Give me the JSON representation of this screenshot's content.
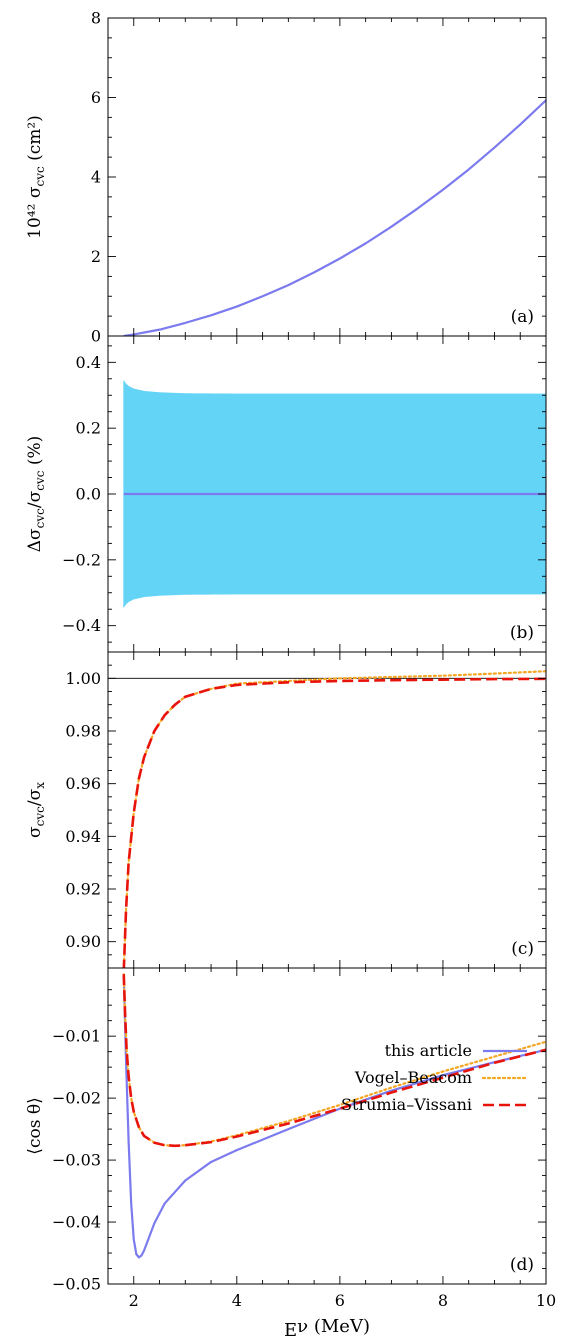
{
  "chart_data": [
    {
      "id": "a",
      "type": "line",
      "panel_label": "(a)",
      "ylabel": "10⁴² σ_cvc   (cm²)",
      "ylim": [
        0,
        8
      ],
      "yticks": [
        0,
        2,
        4,
        6,
        8
      ],
      "ytick_labels": [
        "0",
        "2",
        "4",
        "6",
        "8"
      ],
      "grid": false,
      "series": [
        {
          "color": "#7b7bef",
          "style": "solid",
          "x": [
            1.806,
            2.0,
            2.5,
            3.0,
            3.5,
            4.0,
            4.5,
            5.0,
            5.5,
            6.0,
            6.5,
            7.0,
            7.5,
            8.0,
            8.5,
            9.0,
            9.5,
            10.0
          ],
          "y": [
            0.0,
            0.04,
            0.16,
            0.33,
            0.52,
            0.74,
            1.0,
            1.28,
            1.6,
            1.95,
            2.33,
            2.75,
            3.2,
            3.68,
            4.19,
            4.74,
            5.32,
            5.93
          ]
        }
      ]
    },
    {
      "id": "b",
      "type": "line",
      "panel_label": "(b)",
      "ylabel": "Δσ_cvc/σ_cvc   (%)",
      "ylim": [
        -0.48,
        0.48
      ],
      "yticks": [
        -0.4,
        -0.2,
        0.0,
        0.2,
        0.4
      ],
      "ytick_labels": [
        "−0.4",
        "−0.2",
        "0.0",
        "0.2",
        "0.4"
      ],
      "grid": false,
      "band": {
        "color": "#5bd1f5",
        "x": [
          1.806,
          1.85,
          1.9,
          2.0,
          2.2,
          2.5,
          3.0,
          4.0,
          10.0
        ],
        "upper": [
          0.345,
          0.335,
          0.328,
          0.32,
          0.313,
          0.309,
          0.306,
          0.305,
          0.305
        ],
        "lower": [
          -0.345,
          -0.335,
          -0.328,
          -0.32,
          -0.313,
          -0.309,
          -0.306,
          -0.305,
          -0.305
        ]
      },
      "series": [
        {
          "color": "#7b7bef",
          "style": "solid",
          "x": [
            1.806,
            10.0
          ],
          "y": [
            0.0,
            0.0
          ]
        }
      ]
    },
    {
      "id": "c",
      "type": "line",
      "panel_label": "(c)",
      "ylabel": "σ_cvc/σ_x",
      "ylim": [
        0.89,
        1.01
      ],
      "yticks": [
        0.9,
        0.92,
        0.94,
        0.96,
        0.98,
        1.0
      ],
      "ytick_labels": [
        "0.90",
        "0.92",
        "0.94",
        "0.96",
        "0.98",
        "1.00"
      ],
      "grid": false,
      "reference_line": 1.0,
      "series": [
        {
          "name": "Vogel–Beacom",
          "color": "#f5a623",
          "style": "dotted",
          "x": [
            1.806,
            1.85,
            1.9,
            2.0,
            2.1,
            2.2,
            2.4,
            2.6,
            2.8,
            3.0,
            3.5,
            4.0,
            5.0,
            6.0,
            7.0,
            8.0,
            9.0,
            10.0
          ],
          "y": [
            0.889,
            0.912,
            0.93,
            0.949,
            0.962,
            0.97,
            0.98,
            0.986,
            0.99,
            0.993,
            0.996,
            0.998,
            0.999,
            1.0,
            1.0005,
            1.001,
            1.0018,
            1.0027
          ]
        },
        {
          "name": "Strumia–Vissani",
          "color": "#e8140c",
          "style": "dashed",
          "x": [
            1.806,
            1.85,
            1.9,
            2.0,
            2.1,
            2.2,
            2.4,
            2.6,
            2.8,
            3.0,
            3.5,
            4.0,
            5.0,
            6.0,
            7.0,
            8.0,
            9.0,
            10.0
          ],
          "y": [
            0.889,
            0.912,
            0.93,
            0.949,
            0.962,
            0.97,
            0.98,
            0.986,
            0.99,
            0.993,
            0.996,
            0.9975,
            0.9985,
            0.999,
            0.9993,
            0.9995,
            0.9997,
            0.9998
          ]
        }
      ]
    },
    {
      "id": "d",
      "type": "line",
      "panel_label": "(d)",
      "ylabel": "⟨cos θ⟩",
      "xlabel": "E_ν (MeV)",
      "xlim": [
        1.5,
        10
      ],
      "xticks": [
        2,
        4,
        6,
        8,
        10
      ],
      "xtick_labels": [
        "2",
        "4",
        "6",
        "8",
        "10"
      ],
      "ylim": [
        -0.05,
        0.001
      ],
      "yticks": [
        -0.05,
        -0.04,
        -0.03,
        -0.02,
        -0.01
      ],
      "ytick_labels": [
        "−0.05",
        "−0.04",
        "−0.03",
        "−0.02",
        "−0.01"
      ],
      "grid": false,
      "legend": "right",
      "series": [
        {
          "name": "this article",
          "color": "#7b7bef",
          "style": "solid",
          "x": [
            1.806,
            1.85,
            1.9,
            1.95,
            2.0,
            2.05,
            2.1,
            2.15,
            2.2,
            2.3,
            2.4,
            2.6,
            3.0,
            3.5,
            4.0,
            5.0,
            6.0,
            7.0,
            8.0,
            9.0,
            10.0
          ],
          "y": [
            0.0,
            -0.014,
            -0.027,
            -0.037,
            -0.0428,
            -0.0452,
            -0.0457,
            -0.0454,
            -0.0446,
            -0.0424,
            -0.0402,
            -0.037,
            -0.0333,
            -0.0303,
            -0.0284,
            -0.025,
            -0.0217,
            -0.0188,
            -0.0163,
            -0.0142,
            -0.0122
          ]
        },
        {
          "name": "Vogel–Beacom",
          "color": "#f5a623",
          "style": "dotted",
          "x": [
            1.806,
            1.83,
            1.86,
            1.9,
            1.95,
            2.0,
            2.1,
            2.2,
            2.4,
            2.6,
            2.8,
            3.0,
            3.5,
            4.0,
            5.0,
            6.0,
            7.0,
            8.0,
            9.0,
            10.0
          ],
          "y": [
            0.0,
            -0.006,
            -0.012,
            -0.0165,
            -0.02,
            -0.0222,
            -0.0247,
            -0.0261,
            -0.0272,
            -0.0276,
            -0.0277,
            -0.0276,
            -0.027,
            -0.026,
            -0.0237,
            -0.0211,
            -0.0183,
            -0.0157,
            -0.0133,
            -0.0109
          ]
        },
        {
          "name": "Strumia–Vissani",
          "color": "#e8140c",
          "style": "dashed",
          "x": [
            1.806,
            1.83,
            1.86,
            1.9,
            1.95,
            2.0,
            2.1,
            2.2,
            2.4,
            2.6,
            2.8,
            3.0,
            3.5,
            4.0,
            5.0,
            6.0,
            7.0,
            8.0,
            9.0,
            10.0
          ],
          "y": [
            0.0,
            -0.006,
            -0.012,
            -0.0165,
            -0.02,
            -0.0222,
            -0.0247,
            -0.0261,
            -0.0272,
            -0.0276,
            -0.0277,
            -0.0276,
            -0.0271,
            -0.0262,
            -0.0241,
            -0.0217,
            -0.0191,
            -0.0167,
            -0.0143,
            -0.0122
          ]
        }
      ]
    }
  ]
}
